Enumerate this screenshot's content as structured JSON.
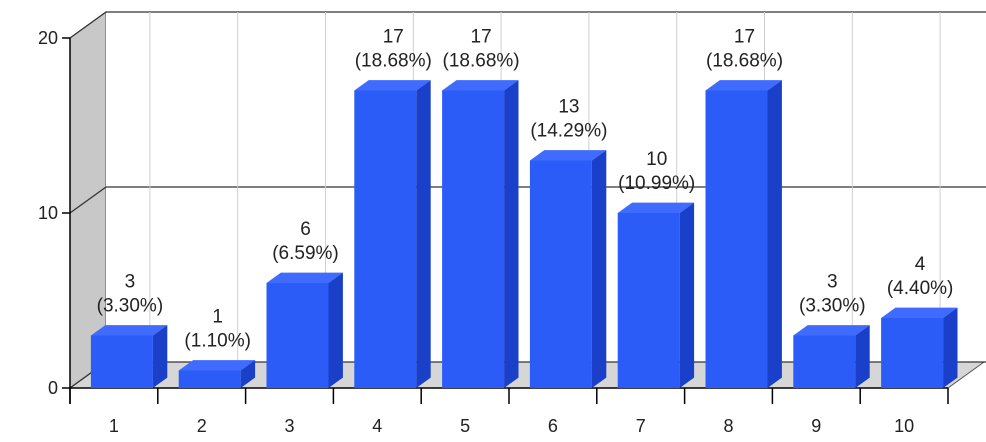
{
  "chart_data": {
    "type": "bar",
    "categories": [
      "1",
      "2",
      "3",
      "4",
      "5",
      "6",
      "7",
      "8",
      "9",
      "10"
    ],
    "values": [
      3,
      1,
      6,
      17,
      17,
      13,
      10,
      17,
      3,
      4
    ],
    "percent_labels": [
      "(3.30%)",
      "(1.10%)",
      "(6.59%)",
      "(18.68%)",
      "(18.68%)",
      "(14.29%)",
      "(10.99%)",
      "(18.68%)",
      "(3.30%)",
      "(4.40%)"
    ],
    "yticks": [
      "0",
      "10",
      "20"
    ],
    "ylim": [
      0,
      20
    ],
    "grid": true,
    "style": "3d",
    "colors": {
      "bar_front": "#2b5cf7",
      "bar_side": "#1a3fc8",
      "bar_top": "#3f6cff",
      "wall": "#c8c8c8",
      "floor": "#d6d6d6",
      "grid": "#333333"
    }
  }
}
